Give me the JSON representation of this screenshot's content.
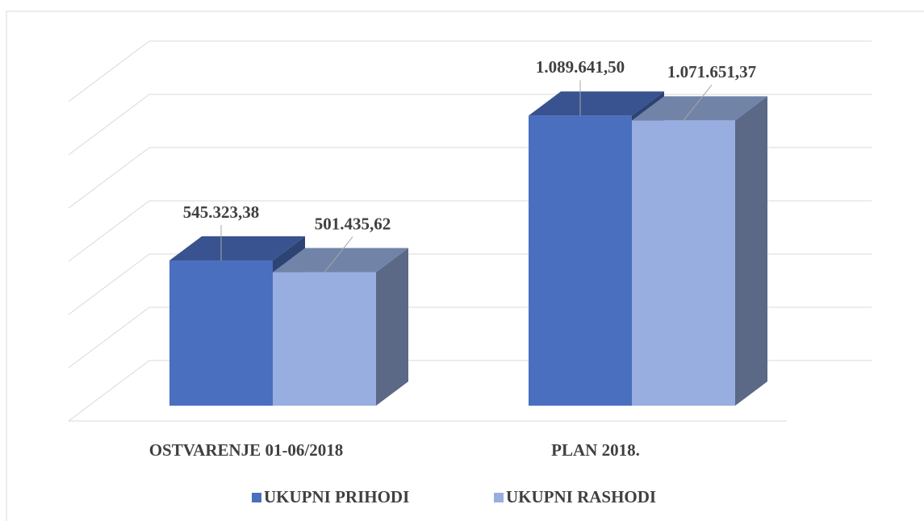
{
  "chart_data": {
    "type": "bar3d",
    "categories": [
      "OSTVARENJE 01-06/2018",
      "PLAN 2018."
    ],
    "series": [
      {
        "name": "UKUPNI PRIHODI",
        "color": "#4a6fbf",
        "values": [
          545323.38,
          1089641.5
        ],
        "value_labels": [
          "545.323,38",
          "1.089.641,50"
        ]
      },
      {
        "name": "UKUPNI RASHODI",
        "color": "#98aee0",
        "values": [
          501435.62,
          1071651.37
        ],
        "value_labels": [
          "501.435,62",
          "1.071.651,37"
        ]
      }
    ],
    "ylim": [
      0,
      1200000
    ],
    "yticks": [
      0,
      200000,
      400000,
      600000,
      800000,
      1000000,
      1200000
    ],
    "grid": true,
    "legend": "bottom"
  }
}
